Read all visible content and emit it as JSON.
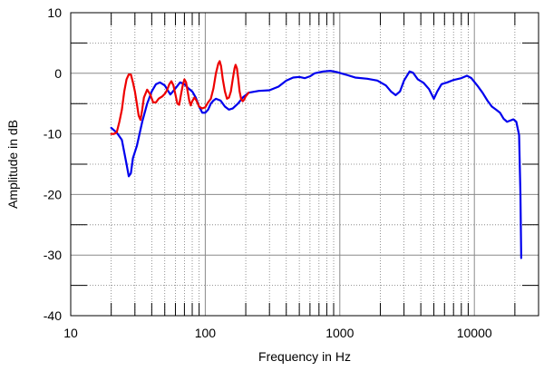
{
  "chart_data": {
    "type": "line",
    "title": "",
    "xlabel": "Frequency in Hz",
    "ylabel": "Amplitude in dB",
    "xscale": "log",
    "xlim": [
      10,
      30000
    ],
    "ylim": [
      -40,
      10
    ],
    "xticks": [
      {
        "value": 10,
        "label": "10"
      },
      {
        "value": 100,
        "label": "100"
      },
      {
        "value": 1000,
        "label": "1000"
      },
      {
        "value": 10000,
        "label": "10000"
      }
    ],
    "yticks": [
      {
        "value": 10,
        "label": "10"
      },
      {
        "value": 0,
        "label": "0"
      },
      {
        "value": -10,
        "label": "-10"
      },
      {
        "value": -20,
        "label": "-20"
      },
      {
        "value": -30,
        "label": "-30"
      },
      {
        "value": -40,
        "label": "-40"
      }
    ],
    "grid": true,
    "series": [
      {
        "color": "#0000ee",
        "points": [
          [
            20,
            -9
          ],
          [
            22,
            -9.8
          ],
          [
            24,
            -11
          ],
          [
            26,
            -15
          ],
          [
            27,
            -17
          ],
          [
            28,
            -16.5
          ],
          [
            29,
            -14
          ],
          [
            31,
            -12
          ],
          [
            34,
            -8
          ],
          [
            37,
            -5
          ],
          [
            40,
            -3
          ],
          [
            43,
            -1.8
          ],
          [
            46,
            -1.5
          ],
          [
            50,
            -2
          ],
          [
            55,
            -3.5
          ],
          [
            60,
            -2.5
          ],
          [
            65,
            -1.5
          ],
          [
            70,
            -1.8
          ],
          [
            75,
            -2.5
          ],
          [
            80,
            -3
          ],
          [
            85,
            -4
          ],
          [
            90,
            -5.5
          ],
          [
            95,
            -6.5
          ],
          [
            100,
            -6.5
          ],
          [
            105,
            -6
          ],
          [
            110,
            -5
          ],
          [
            115,
            -4.5
          ],
          [
            120,
            -4.2
          ],
          [
            130,
            -4.5
          ],
          [
            140,
            -5.5
          ],
          [
            150,
            -6
          ],
          [
            160,
            -5.8
          ],
          [
            175,
            -5
          ],
          [
            190,
            -4
          ],
          [
            210,
            -3.2
          ],
          [
            250,
            -2.9
          ],
          [
            300,
            -2.8
          ],
          [
            350,
            -2.2
          ],
          [
            400,
            -1.2
          ],
          [
            450,
            -0.7
          ],
          [
            500,
            -0.6
          ],
          [
            550,
            -0.8
          ],
          [
            600,
            -0.5
          ],
          [
            650,
            0
          ],
          [
            750,
            0.3
          ],
          [
            850,
            0.4
          ],
          [
            950,
            0.2
          ],
          [
            1100,
            -0.2
          ],
          [
            1300,
            -0.7
          ],
          [
            1600,
            -0.9
          ],
          [
            1900,
            -1.2
          ],
          [
            2200,
            -2
          ],
          [
            2400,
            -3
          ],
          [
            2600,
            -3.6
          ],
          [
            2800,
            -3
          ],
          [
            3000,
            -1.2
          ],
          [
            3300,
            0.3
          ],
          [
            3500,
            0.1
          ],
          [
            3800,
            -1
          ],
          [
            4200,
            -1.6
          ],
          [
            4600,
            -2.6
          ],
          [
            5000,
            -4.2
          ],
          [
            5300,
            -3
          ],
          [
            5700,
            -1.8
          ],
          [
            6300,
            -1.5
          ],
          [
            7000,
            -1.1
          ],
          [
            8000,
            -0.8
          ],
          [
            8800,
            -0.4
          ],
          [
            9500,
            -0.8
          ],
          [
            10500,
            -2
          ],
          [
            11500,
            -3.2
          ],
          [
            12500,
            -4.5
          ],
          [
            13500,
            -5.5
          ],
          [
            14500,
            -6
          ],
          [
            15500,
            -6.5
          ],
          [
            16500,
            -7.5
          ],
          [
            17500,
            -8
          ],
          [
            18500,
            -7.8
          ],
          [
            19500,
            -7.6
          ],
          [
            20500,
            -8
          ],
          [
            21500,
            -10.2
          ],
          [
            22000,
            -20
          ],
          [
            22300,
            -30.5
          ]
        ]
      },
      {
        "color": "#ee0000",
        "points": [
          [
            20,
            -10
          ],
          [
            21,
            -10
          ],
          [
            22,
            -9.7
          ],
          [
            23,
            -8
          ],
          [
            24,
            -6
          ],
          [
            25,
            -3
          ],
          [
            26,
            -1
          ],
          [
            27,
            -0.2
          ],
          [
            28,
            -0.2
          ],
          [
            29,
            -1.5
          ],
          [
            30,
            -3
          ],
          [
            31,
            -5
          ],
          [
            32,
            -7
          ],
          [
            33,
            -7.7
          ],
          [
            34,
            -6
          ],
          [
            35,
            -4
          ],
          [
            37,
            -2.7
          ],
          [
            39,
            -3.5
          ],
          [
            41,
            -4.8
          ],
          [
            43,
            -4.8
          ],
          [
            45,
            -4.2
          ],
          [
            48,
            -3.8
          ],
          [
            50,
            -3.4
          ],
          [
            52,
            -2.8
          ],
          [
            54,
            -1.8
          ],
          [
            56,
            -1.3
          ],
          [
            58,
            -2
          ],
          [
            60,
            -3.5
          ],
          [
            62,
            -5
          ],
          [
            64,
            -5.2
          ],
          [
            66,
            -3.5
          ],
          [
            68,
            -2
          ],
          [
            70,
            -1
          ],
          [
            72,
            -1.5
          ],
          [
            74,
            -3
          ],
          [
            76,
            -4.5
          ],
          [
            78,
            -5.3
          ],
          [
            80,
            -4.6
          ],
          [
            83,
            -4
          ],
          [
            86,
            -4.5
          ],
          [
            90,
            -5.5
          ],
          [
            95,
            -5.8
          ],
          [
            100,
            -5.6
          ],
          [
            105,
            -4.8
          ],
          [
            110,
            -4.2
          ],
          [
            115,
            -2.5
          ],
          [
            120,
            0
          ],
          [
            125,
            1.6
          ],
          [
            128,
            2
          ],
          [
            131,
            1.2
          ],
          [
            135,
            -1
          ],
          [
            140,
            -3
          ],
          [
            145,
            -4.2
          ],
          [
            150,
            -4
          ],
          [
            155,
            -3
          ],
          [
            160,
            -1
          ],
          [
            165,
            0.8
          ],
          [
            168,
            1.4
          ],
          [
            172,
            0.8
          ],
          [
            176,
            -1
          ],
          [
            180,
            -3
          ],
          [
            185,
            -4.3
          ],
          [
            190,
            -4.6
          ],
          [
            195,
            -4.3
          ],
          [
            200,
            -3.8
          ],
          [
            205,
            -3.5
          ],
          [
            210,
            -3.2
          ]
        ]
      }
    ]
  }
}
